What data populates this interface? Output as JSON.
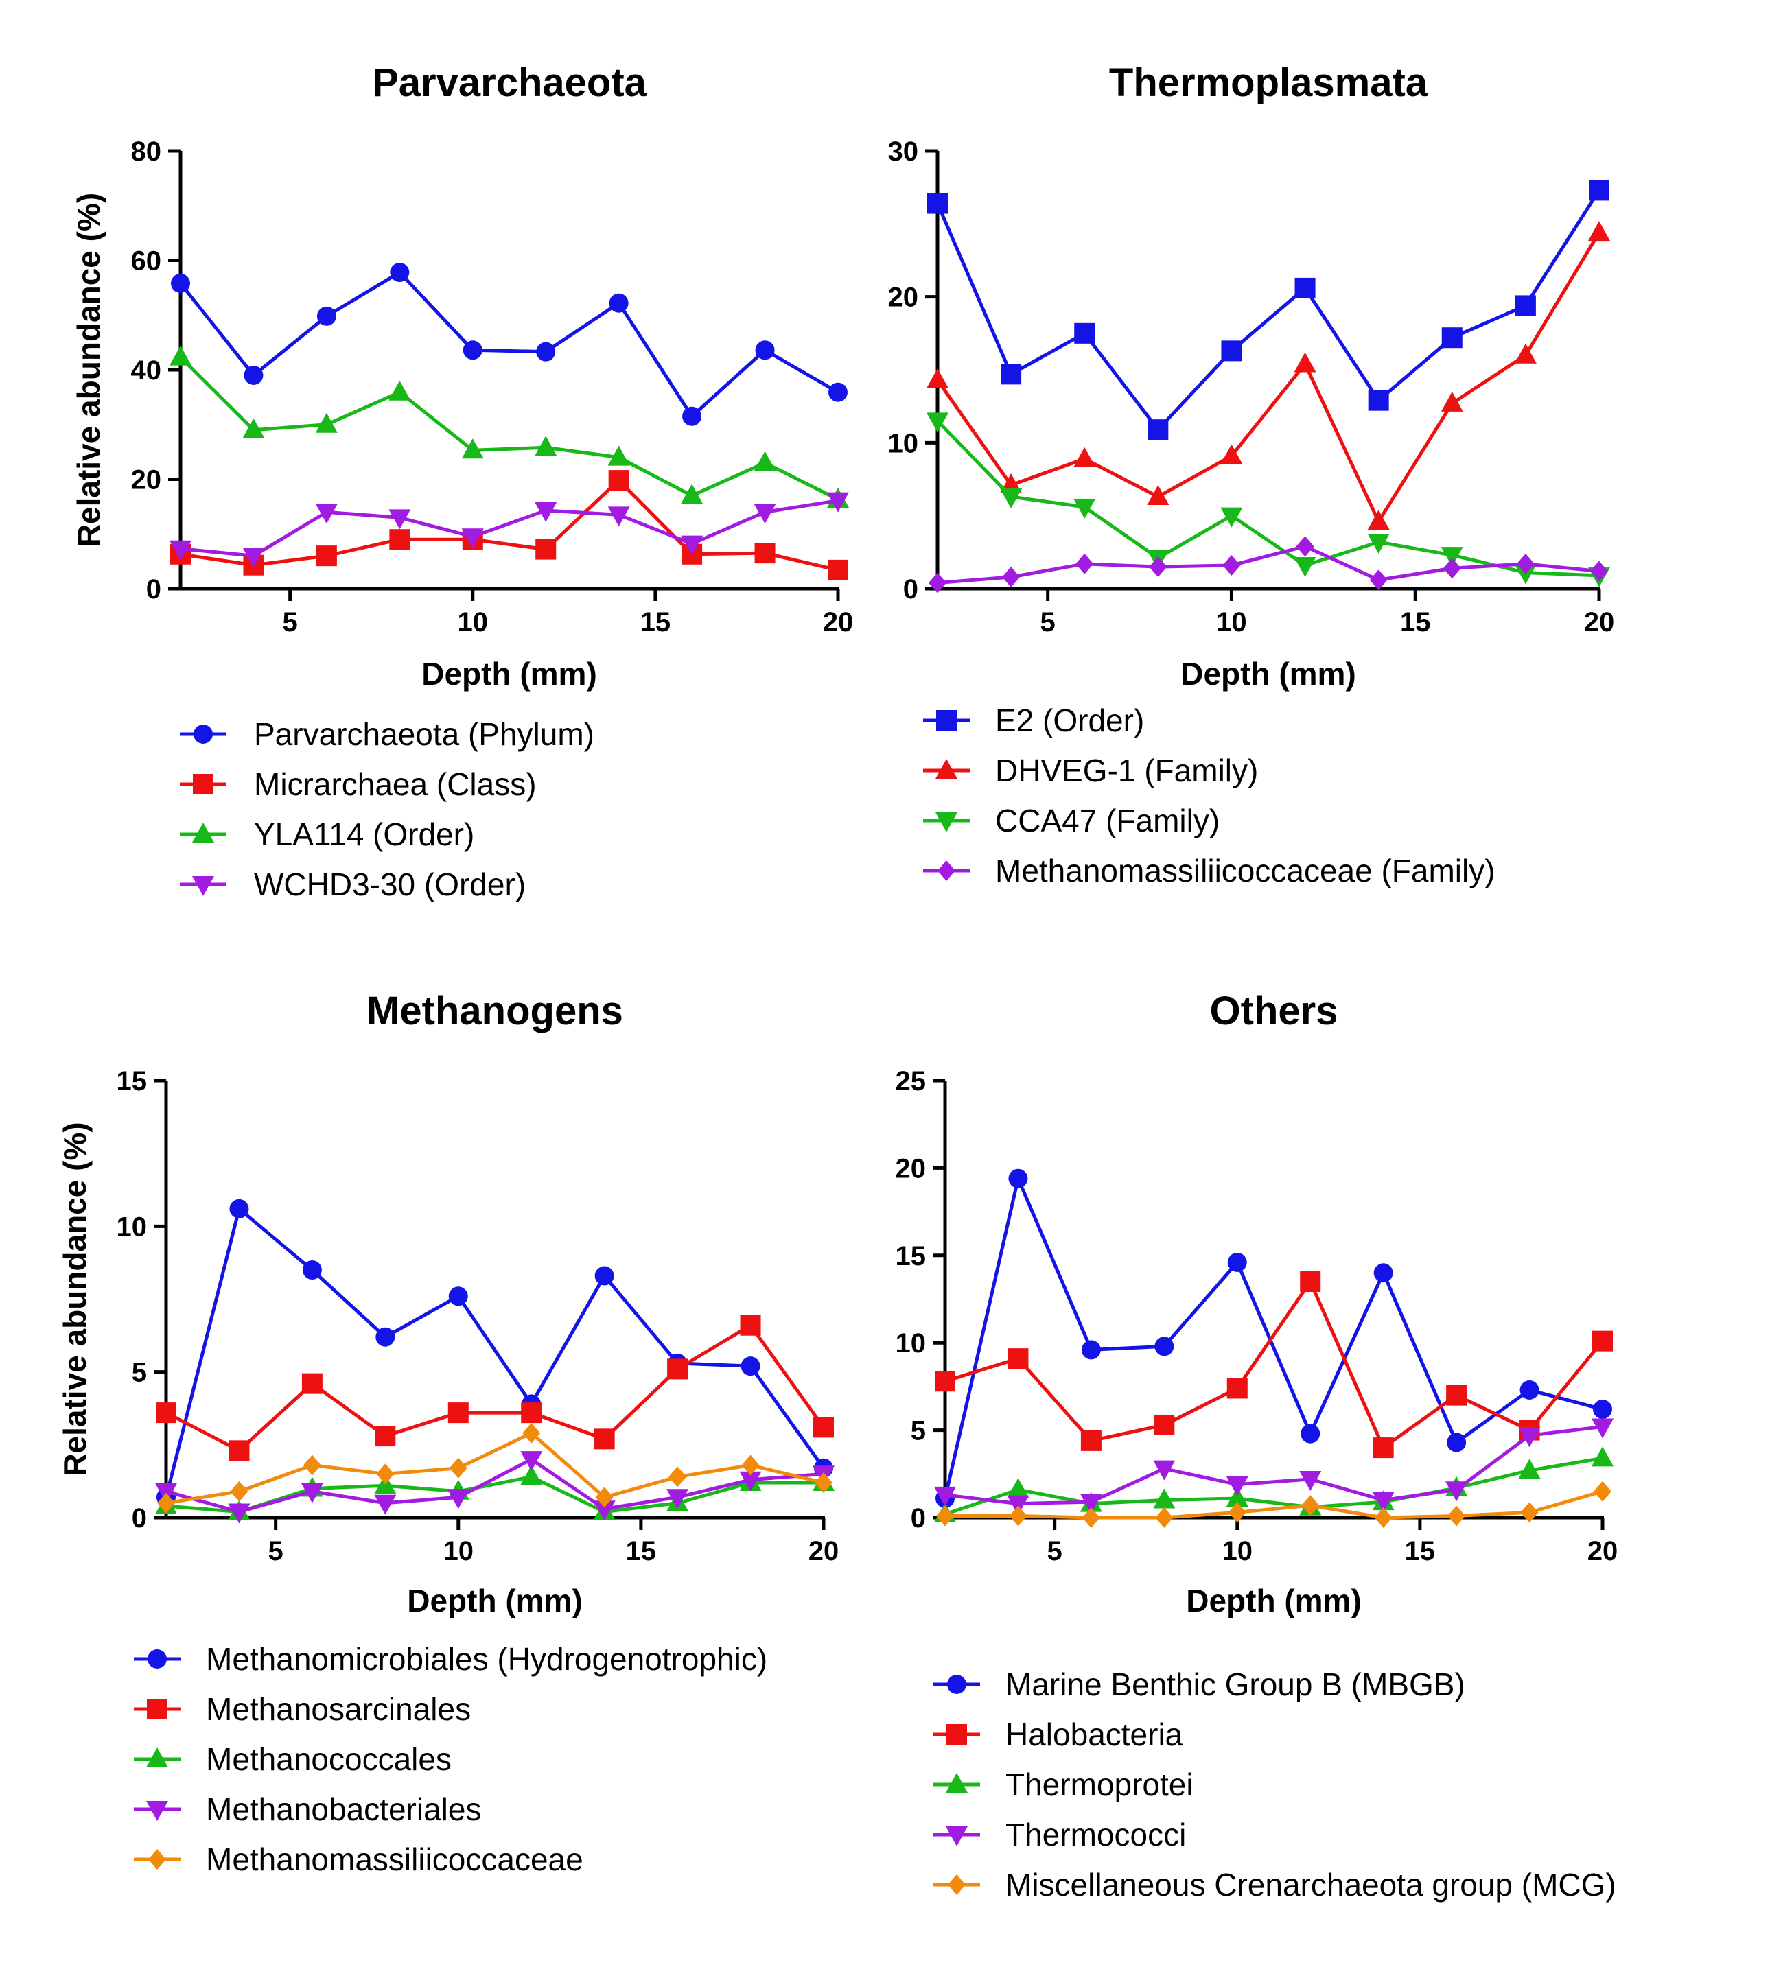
{
  "chart_data": [
    {
      "type": "line",
      "title": "Parvarchaeota",
      "xlabel": "Depth (mm)",
      "ylabel": "Relative abundance (%)",
      "xlim": [
        2,
        20
      ],
      "ylim": [
        0,
        80
      ],
      "xticks": [
        5,
        10,
        15,
        20
      ],
      "yticks": [
        0,
        20,
        40,
        60,
        80
      ],
      "legend": "below",
      "x": [
        2,
        4,
        6,
        8,
        10,
        12,
        14,
        16,
        18,
        20
      ],
      "series": [
        {
          "name": "Parvarchaeota (Phylum)",
          "color": "#1414e6",
          "marker": "circle",
          "values": [
            55.8,
            39.0,
            49.8,
            57.8,
            43.6,
            43.3,
            52.2,
            31.5,
            43.6,
            35.9
          ]
        },
        {
          "name": "Micrarchaea (Class)",
          "color": "#ee1111",
          "marker": "square",
          "values": [
            6.3,
            4.3,
            6.0,
            9.0,
            9.0,
            7.2,
            19.8,
            6.3,
            6.5,
            3.4
          ]
        },
        {
          "name": "YLA114 (Order)",
          "color": "#17b817",
          "marker": "triangle-up",
          "values": [
            42.3,
            29.0,
            30.0,
            35.9,
            25.3,
            25.8,
            24.0,
            17.0,
            23.0,
            16.3
          ]
        },
        {
          "name": "WCHD3-30 (Order)",
          "color": "#a21be0",
          "marker": "triangle-down",
          "values": [
            7.3,
            6.0,
            14.0,
            13.0,
            9.5,
            14.3,
            13.5,
            8.2,
            14.0,
            16.1
          ]
        }
      ]
    },
    {
      "type": "line",
      "title": "Thermoplasmata",
      "xlabel": "Depth (mm)",
      "ylabel": "",
      "xlim": [
        2,
        20
      ],
      "ylim": [
        0,
        30
      ],
      "xticks": [
        5,
        10,
        15,
        20
      ],
      "yticks": [
        0,
        10,
        20,
        30
      ],
      "legend": "below",
      "x": [
        2,
        4,
        6,
        8,
        10,
        12,
        14,
        16,
        18,
        20
      ],
      "series": [
        {
          "name": "E2 (Order)",
          "color": "#1414e6",
          "marker": "square",
          "values": [
            26.4,
            14.7,
            17.5,
            10.9,
            16.3,
            20.6,
            12.9,
            17.2,
            19.4,
            27.3
          ]
        },
        {
          "name": "DHVEG-1 (Family)",
          "color": "#ee1111",
          "marker": "triangle-up",
          "values": [
            14.3,
            7.1,
            8.9,
            6.3,
            9.1,
            15.4,
            4.6,
            12.7,
            16.0,
            24.4
          ]
        },
        {
          "name": "CCA47 (Family)",
          "color": "#17b817",
          "marker": "triangle-down",
          "values": [
            11.5,
            6.3,
            5.6,
            2.1,
            5.0,
            1.6,
            3.2,
            2.3,
            1.1,
            0.9
          ]
        },
        {
          "name": "Methanomassiliicoccaceae (Family)",
          "color": "#a21be0",
          "marker": "diamond",
          "values": [
            0.4,
            0.8,
            1.7,
            1.5,
            1.6,
            2.9,
            0.6,
            1.4,
            1.7,
            1.2
          ]
        }
      ]
    },
    {
      "type": "line",
      "title": "Methanogens",
      "xlabel": "Depth (mm)",
      "ylabel": "Relative abundance (%)",
      "xlim": [
        2,
        20
      ],
      "ylim": [
        0,
        15
      ],
      "xticks": [
        5,
        10,
        15,
        20
      ],
      "yticks": [
        0,
        5,
        10,
        15
      ],
      "legend": "below",
      "x": [
        2,
        4,
        6,
        8,
        10,
        12,
        14,
        16,
        18,
        20
      ],
      "series": [
        {
          "name": "Methanomicrobiales (Hydrogenotrophic)",
          "color": "#1414e6",
          "marker": "circle",
          "values": [
            0.7,
            10.6,
            8.5,
            6.2,
            7.6,
            3.9,
            8.3,
            5.3,
            5.2,
            1.7
          ]
        },
        {
          "name": "Methanosarcinales",
          "color": "#ee1111",
          "marker": "square",
          "values": [
            3.6,
            2.3,
            4.6,
            2.8,
            3.6,
            3.6,
            2.7,
            5.1,
            6.6,
            3.1
          ]
        },
        {
          "name": "Methanococcales",
          "color": "#17b817",
          "marker": "triangle-up",
          "values": [
            0.4,
            0.2,
            1.0,
            1.1,
            0.9,
            1.4,
            0.2,
            0.5,
            1.2,
            1.2
          ]
        },
        {
          "name": "Methanobacteriales",
          "color": "#a21be0",
          "marker": "triangle-down",
          "values": [
            0.9,
            0.2,
            0.9,
            0.5,
            0.7,
            2.0,
            0.3,
            0.7,
            1.3,
            1.5
          ]
        },
        {
          "name": "Methanomassiliicoccaceae",
          "color": "#f28a0c",
          "marker": "diamond",
          "values": [
            0.5,
            0.9,
            1.8,
            1.5,
            1.7,
            2.9,
            0.7,
            1.4,
            1.8,
            1.2
          ]
        }
      ]
    },
    {
      "type": "line",
      "title": "Others",
      "xlabel": "Depth (mm)",
      "ylabel": "",
      "xlim": [
        2,
        20
      ],
      "ylim": [
        0,
        25
      ],
      "xticks": [
        5,
        10,
        15,
        20
      ],
      "yticks": [
        0,
        5,
        10,
        15,
        20,
        25
      ],
      "legend": "below",
      "x": [
        2,
        4,
        6,
        8,
        10,
        12,
        14,
        16,
        18,
        20
      ],
      "series": [
        {
          "name": "Marine Benthic Group B (MBGB)",
          "color": "#1414e6",
          "marker": "circle",
          "values": [
            1.1,
            19.4,
            9.6,
            9.8,
            14.6,
            4.8,
            14.0,
            4.3,
            7.3,
            6.2
          ]
        },
        {
          "name": "Halobacteria",
          "color": "#ee1111",
          "marker": "square",
          "values": [
            7.8,
            9.1,
            4.4,
            5.3,
            7.4,
            13.5,
            4.0,
            7.0,
            5.0,
            10.1
          ]
        },
        {
          "name": "Thermoprotei",
          "color": "#17b817",
          "marker": "triangle-up",
          "values": [
            0.2,
            1.6,
            0.8,
            1.0,
            1.1,
            0.6,
            0.9,
            1.7,
            2.7,
            3.4
          ]
        },
        {
          "name": "Thermococci",
          "color": "#a21be0",
          "marker": "triangle-down",
          "values": [
            1.3,
            0.8,
            0.9,
            2.8,
            1.9,
            2.2,
            1.0,
            1.6,
            4.7,
            5.2
          ]
        },
        {
          "name": "Miscellaneous Crenarchaeota group (MCG)",
          "color": "#f28a0c",
          "marker": "diamond",
          "values": [
            0.1,
            0.1,
            0.0,
            0.0,
            0.3,
            0.7,
            0.0,
            0.1,
            0.3,
            1.5
          ]
        }
      ]
    }
  ]
}
